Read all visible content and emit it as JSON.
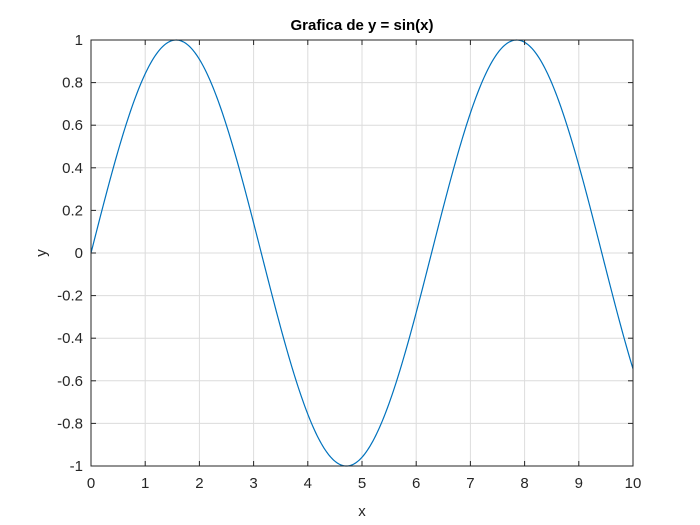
{
  "chart_data": {
    "type": "line",
    "title": "Grafica de y = sin(x)",
    "xlabel": "x",
    "ylabel": "y",
    "xlim": [
      0,
      10
    ],
    "ylim": [
      -1,
      1
    ],
    "xticks": [
      0,
      1,
      2,
      3,
      4,
      5,
      6,
      7,
      8,
      9,
      10
    ],
    "xtick_labels": [
      "0",
      "1",
      "2",
      "3",
      "4",
      "5",
      "6",
      "7",
      "8",
      "9",
      "10"
    ],
    "yticks": [
      1,
      0.8,
      0.6,
      0.4,
      0.2,
      0,
      -0.2,
      -0.4,
      -0.6,
      -0.8,
      -1
    ],
    "ytick_labels": [
      "1",
      "0.8",
      "0.6",
      "0.4",
      "0.2",
      "0",
      "-0.2",
      "-0.4",
      "-0.6",
      "-0.8",
      "-1"
    ],
    "grid": true,
    "function": "y = sin(x)",
    "series": [
      {
        "color": "#0072BD",
        "x": [
          0,
          0.5,
          1,
          1.5,
          1.5708,
          2,
          2.5,
          3,
          3.5,
          4,
          4.5,
          4.7124,
          5,
          5.5,
          6,
          6.5,
          7,
          7.5,
          7.854,
          8,
          8.5,
          9,
          9.5,
          10
        ],
        "values": [
          0,
          0.479,
          0.841,
          0.997,
          1,
          0.909,
          0.598,
          0.141,
          -0.351,
          -0.757,
          -0.978,
          -1,
          -0.959,
          -0.706,
          -0.279,
          0.215,
          0.657,
          0.938,
          1,
          0.989,
          0.798,
          0.412,
          -0.075,
          -0.544
        ]
      }
    ]
  }
}
